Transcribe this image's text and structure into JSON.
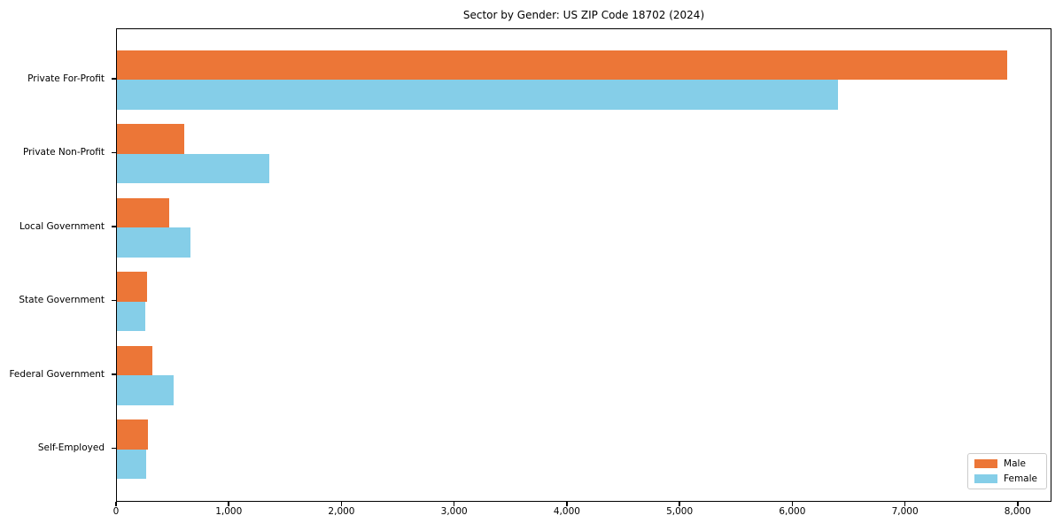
{
  "chart_data": {
    "type": "bar",
    "orientation": "horizontal",
    "title": "Sector by Gender: US ZIP Code 18702 (2024)",
    "categories": [
      "Private For-Profit",
      "Private Non-Profit",
      "Local Government",
      "State Government",
      "Federal Government",
      "Self-Employed"
    ],
    "series": [
      {
        "name": "Male",
        "color": "#EC7637",
        "values": [
          7900,
          600,
          460,
          270,
          315,
          275
        ]
      },
      {
        "name": "Female",
        "color": "#85CEE8",
        "values": [
          6400,
          1350,
          655,
          250,
          505,
          260
        ]
      }
    ],
    "xlabel": "",
    "ylabel": "",
    "xlim": [
      0,
      8300
    ],
    "xticks": [
      0,
      1000,
      2000,
      3000,
      4000,
      5000,
      6000,
      7000,
      8000
    ],
    "xtick_labels": [
      "0",
      "1,000",
      "2,000",
      "3,000",
      "4,000",
      "5,000",
      "6,000",
      "7,000",
      "8,000"
    ],
    "grid": false,
    "legend_position": "lower right"
  }
}
